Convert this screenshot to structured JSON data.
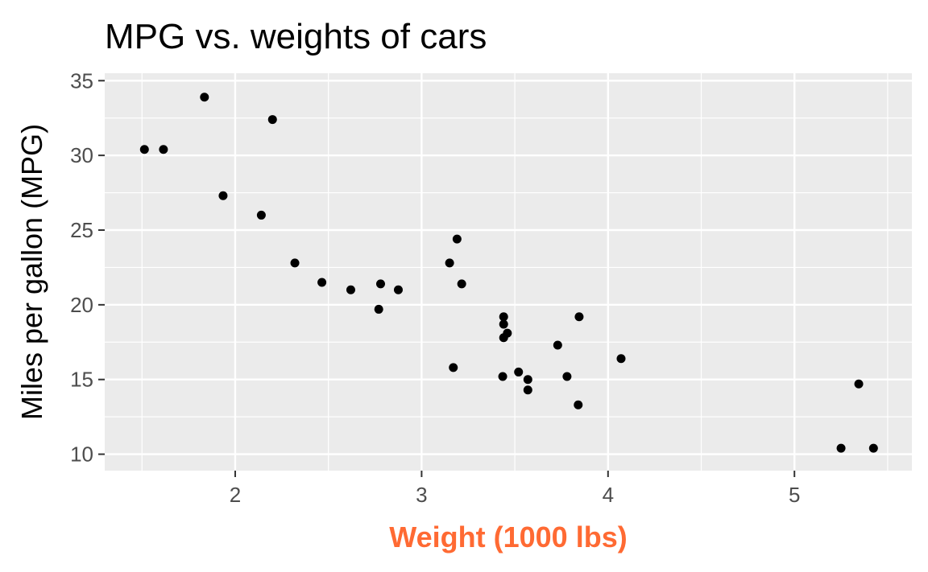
{
  "chart_data": {
    "type": "scatter",
    "title": "MPG vs. weights of cars",
    "xlabel": "Weight (1000 lbs)",
    "ylabel": "Miles per gallon (MPG)",
    "xlim": [
      1.3,
      5.63
    ],
    "ylim": [
      8.9,
      35.5
    ],
    "x_ticks": [
      2,
      3,
      4,
      5
    ],
    "x_minor": [
      1.5,
      2.5,
      3.5,
      4.5,
      5.5
    ],
    "y_ticks": [
      10,
      15,
      20,
      25,
      30,
      35
    ],
    "y_minor": [
      12.5,
      17.5,
      22.5,
      27.5,
      32.5
    ],
    "grid": true,
    "colors": {
      "panel": "#ebebeb",
      "grid": "#ffffff",
      "point": "#000000",
      "xlabel": "#ff6a33",
      "tick_text": "#4d4d4d",
      "tick_mark": "#333333"
    },
    "points": [
      {
        "x": 2.62,
        "y": 21.0
      },
      {
        "x": 2.875,
        "y": 21.0
      },
      {
        "x": 2.32,
        "y": 22.8
      },
      {
        "x": 3.215,
        "y": 21.4
      },
      {
        "x": 3.44,
        "y": 18.7
      },
      {
        "x": 3.46,
        "y": 18.1
      },
      {
        "x": 3.57,
        "y": 14.3
      },
      {
        "x": 3.19,
        "y": 24.4
      },
      {
        "x": 3.15,
        "y": 22.8
      },
      {
        "x": 3.44,
        "y": 19.2
      },
      {
        "x": 3.44,
        "y": 17.8
      },
      {
        "x": 4.07,
        "y": 16.4
      },
      {
        "x": 3.73,
        "y": 17.3
      },
      {
        "x": 3.78,
        "y": 15.2
      },
      {
        "x": 5.25,
        "y": 10.4
      },
      {
        "x": 5.424,
        "y": 10.4
      },
      {
        "x": 5.345,
        "y": 14.7
      },
      {
        "x": 2.2,
        "y": 32.4
      },
      {
        "x": 1.615,
        "y": 30.4
      },
      {
        "x": 1.835,
        "y": 33.9
      },
      {
        "x": 2.465,
        "y": 21.5
      },
      {
        "x": 3.52,
        "y": 15.5
      },
      {
        "x": 3.435,
        "y": 15.2
      },
      {
        "x": 3.84,
        "y": 13.3
      },
      {
        "x": 3.845,
        "y": 19.2
      },
      {
        "x": 1.935,
        "y": 27.3
      },
      {
        "x": 2.14,
        "y": 26.0
      },
      {
        "x": 1.513,
        "y": 30.4
      },
      {
        "x": 3.17,
        "y": 15.8
      },
      {
        "x": 2.77,
        "y": 19.7
      },
      {
        "x": 3.57,
        "y": 15.0
      },
      {
        "x": 2.78,
        "y": 21.4
      }
    ]
  }
}
